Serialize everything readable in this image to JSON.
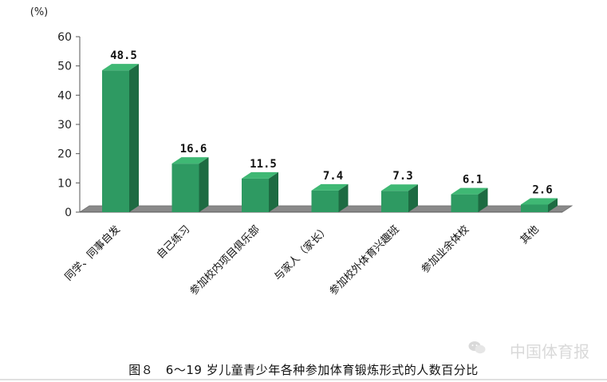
{
  "chart_data": {
    "type": "bar",
    "title": "",
    "unit_label": "(%)",
    "categories": [
      "同学、同事自发",
      "自己练习",
      "参加校内项目俱乐部",
      "与家人（家长）",
      "参加校外体育兴趣班",
      "参加业余体校",
      "其他"
    ],
    "values": [
      48.5,
      16.6,
      11.5,
      7.4,
      7.3,
      6.1,
      2.6
    ],
    "value_labels": [
      "48.5",
      "16.6",
      "11.5",
      "7.4",
      "7.3",
      "6.1",
      "2.6"
    ],
    "ylim": [
      0,
      60
    ],
    "yticks": [
      "0",
      "10",
      "20",
      "30",
      "40",
      "50",
      "60"
    ],
    "grid": false,
    "legend": "none",
    "bar_color": "#2e9a62",
    "bar_side_color": "#1d6b42",
    "floor_color": "#8a8a8a"
  },
  "caption": "图８　6～19 岁儿童青少年各种参加体育锻炼形式的人数百分比",
  "watermark": "中国体育报",
  "watermark_icon": "wechat-icon"
}
